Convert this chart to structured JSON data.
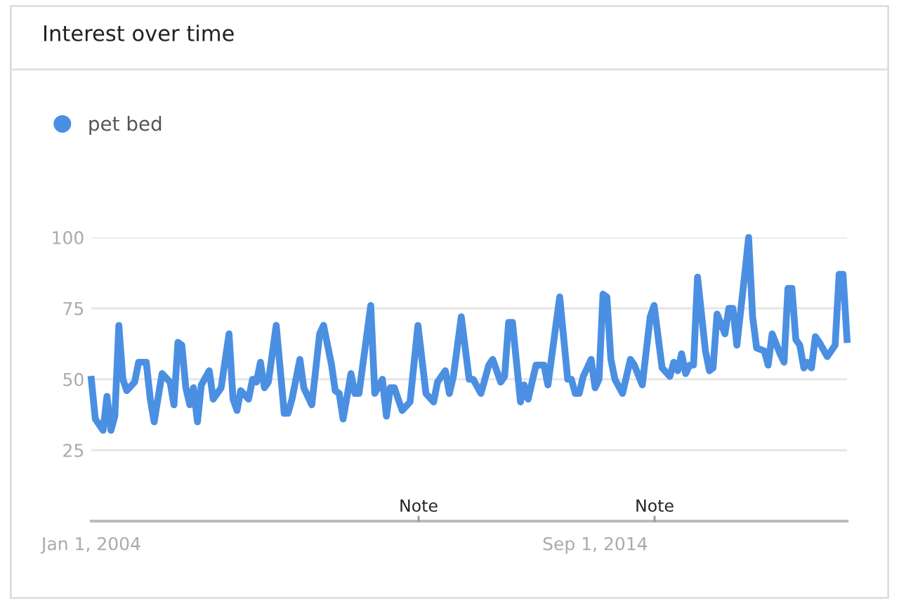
{
  "chart_data": {
    "type": "line",
    "title": "Interest over time",
    "x": [
      "2004-01",
      "2004-02",
      "2004-04",
      "2004-05",
      "2004-06",
      "2004-07",
      "2004-08",
      "2004-09",
      "2004-10",
      "2004-12",
      "2005-01",
      "2005-03",
      "2005-04",
      "2005-05",
      "2005-07",
      "2005-09",
      "2005-10",
      "2005-11",
      "2005-12",
      "2006-01",
      "2006-02",
      "2006-03",
      "2006-04",
      "2006-05",
      "2006-07",
      "2006-08",
      "2006-10",
      "2006-12",
      "2007-01",
      "2007-02",
      "2007-03",
      "2007-05",
      "2007-06",
      "2007-07",
      "2007-08",
      "2007-09",
      "2007-10",
      "2007-12",
      "2008-02",
      "2008-03",
      "2008-04",
      "2008-06",
      "2008-07",
      "2008-09",
      "2008-11",
      "2008-12",
      "2009-02",
      "2009-03",
      "2009-04",
      "2009-05",
      "2009-06",
      "2009-07",
      "2009-08",
      "2009-09",
      "2009-12",
      "2010-01",
      "2010-03",
      "2010-04",
      "2010-05",
      "2010-06",
      "2010-08",
      "2010-10",
      "2010-12",
      "2011-02",
      "2011-04",
      "2011-05",
      "2011-07",
      "2011-08",
      "2011-09",
      "2011-11",
      "2012-01",
      "2012-02",
      "2012-04",
      "2012-06",
      "2012-07",
      "2012-09",
      "2012-10",
      "2012-11",
      "2012-12",
      "2013-02",
      "2013-03",
      "2013-04",
      "2013-06",
      "2013-08",
      "2013-09",
      "2013-12",
      "2014-02",
      "2014-03",
      "2014-04",
      "2014-05",
      "2014-06",
      "2014-08",
      "2014-09",
      "2014-10",
      "2014-11",
      "2014-12",
      "2015-01",
      "2015-02",
      "2015-04",
      "2015-06",
      "2015-07",
      "2015-09",
      "2015-11",
      "2015-12",
      "2016-02",
      "2016-04",
      "2016-05",
      "2016-06",
      "2016-07",
      "2016-08",
      "2016-09",
      "2016-10",
      "2016-11",
      "2017-01",
      "2017-02",
      "2017-03",
      "2017-04",
      "2017-06",
      "2017-07",
      "2017-08",
      "2017-09",
      "2017-11",
      "2017-12",
      "2018-01",
      "2018-02",
      "2018-04",
      "2018-05",
      "2018-06",
      "2018-08",
      "2018-09",
      "2018-10",
      "2018-11",
      "2018-12",
      "2019-01",
      "2019-02",
      "2019-03",
      "2019-04",
      "2019-05",
      "2019-06",
      "2019-08",
      "2019-10",
      "2019-11",
      "2019-12",
      "2020-01"
    ],
    "series": [
      {
        "name": "pet bed",
        "color": "#4b8fe2",
        "values": [
          50,
          36,
          32,
          44,
          32,
          37,
          69,
          50,
          46,
          49,
          56,
          56,
          43,
          35,
          52,
          49,
          41,
          63,
          62,
          47,
          41,
          47,
          35,
          48,
          53,
          43,
          47,
          66,
          43,
          39,
          46,
          43,
          50,
          49,
          56,
          47,
          49,
          69,
          38,
          38,
          43,
          57,
          47,
          41,
          66,
          69,
          55,
          46,
          45,
          36,
          44,
          52,
          45,
          45,
          76,
          45,
          50,
          37,
          47,
          47,
          39,
          42,
          69,
          45,
          42,
          49,
          53,
          45,
          51,
          72,
          50,
          50,
          45,
          55,
          57,
          49,
          51,
          70,
          70,
          42,
          48,
          43,
          55,
          55,
          48,
          79,
          50,
          50,
          45,
          45,
          51,
          57,
          47,
          50,
          80,
          79,
          57,
          50,
          45,
          57,
          55,
          48,
          72,
          76,
          54,
          51,
          56,
          53,
          59,
          52,
          55,
          55,
          86,
          60,
          53,
          54,
          73,
          66,
          75,
          75,
          62,
          87,
          100,
          72,
          61,
          60,
          55,
          66,
          59,
          56,
          82,
          82,
          64,
          62,
          54,
          56,
          54,
          65,
          63,
          58,
          62,
          87,
          87,
          64
        ]
      }
    ],
    "xlim": [
      "2004-01",
      "2020-01"
    ],
    "xticks": [
      {
        "value": "2004-01-01",
        "label": "Jan 1, 2004"
      },
      {
        "value": "2014-09-01",
        "label": "Sep 1, 2014"
      }
    ],
    "ylim": [
      0,
      100
    ],
    "yticks": [
      25,
      50,
      75,
      100
    ],
    "annotations": [
      "Note",
      "Note"
    ],
    "grid": "y",
    "legend": "top left",
    "marker": "none",
    "line_style": "solid"
  }
}
